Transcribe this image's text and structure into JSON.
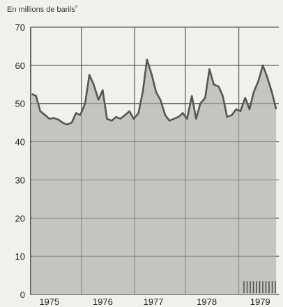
{
  "chart_data": {
    "type": "area",
    "title": "",
    "ylabel": "En millions de barils˚",
    "xlabel": "",
    "ylim": [
      0,
      70
    ],
    "yticks": [
      0,
      10,
      20,
      30,
      40,
      50,
      60,
      70
    ],
    "xticks": [
      "1975",
      "1976",
      "1977",
      "1978",
      "1979"
    ],
    "grid": true,
    "series": [
      {
        "values": [
          [
            1974.92,
            52.5
          ],
          [
            1975.0,
            52.0
          ],
          [
            1975.08,
            48.0
          ],
          [
            1975.17,
            47.0
          ],
          [
            1975.25,
            46.0
          ],
          [
            1975.33,
            46.2
          ],
          [
            1975.42,
            45.8
          ],
          [
            1975.5,
            45.0
          ],
          [
            1975.58,
            44.5
          ],
          [
            1975.67,
            45.0
          ],
          [
            1975.75,
            47.5
          ],
          [
            1975.83,
            47.0
          ],
          [
            1975.92,
            50.0
          ],
          [
            1976.0,
            57.5
          ],
          [
            1976.08,
            55.0
          ],
          [
            1976.17,
            51.0
          ],
          [
            1976.25,
            53.5
          ],
          [
            1976.33,
            46.0
          ],
          [
            1976.42,
            45.5
          ],
          [
            1976.5,
            46.5
          ],
          [
            1976.58,
            46.0
          ],
          [
            1976.67,
            47.0
          ],
          [
            1976.75,
            48.0
          ],
          [
            1976.83,
            46.0
          ],
          [
            1976.92,
            47.5
          ],
          [
            1977.0,
            53.0
          ],
          [
            1977.08,
            61.5
          ],
          [
            1977.17,
            57.5
          ],
          [
            1977.25,
            53.0
          ],
          [
            1977.33,
            51.0
          ],
          [
            1977.42,
            47.0
          ],
          [
            1977.5,
            45.5
          ],
          [
            1977.58,
            46.0
          ],
          [
            1977.67,
            46.5
          ],
          [
            1977.75,
            47.5
          ],
          [
            1977.83,
            46.0
          ],
          [
            1977.92,
            52.0
          ],
          [
            1978.0,
            46.0
          ],
          [
            1978.08,
            50.0
          ],
          [
            1978.17,
            51.5
          ],
          [
            1978.25,
            59.0
          ],
          [
            1978.33,
            55.0
          ],
          [
            1978.42,
            54.5
          ],
          [
            1978.5,
            52.0
          ],
          [
            1978.58,
            46.5
          ],
          [
            1978.67,
            47.0
          ],
          [
            1978.75,
            48.5
          ],
          [
            1978.83,
            48.0
          ],
          [
            1978.92,
            51.5
          ],
          [
            1979.0,
            48.5
          ],
          [
            1979.08,
            53.0
          ],
          [
            1979.17,
            56.0
          ],
          [
            1979.25,
            60.0
          ],
          [
            1979.33,
            57.0
          ],
          [
            1979.42,
            53.0
          ],
          [
            1979.5,
            48.5
          ]
        ]
      }
    ]
  }
}
